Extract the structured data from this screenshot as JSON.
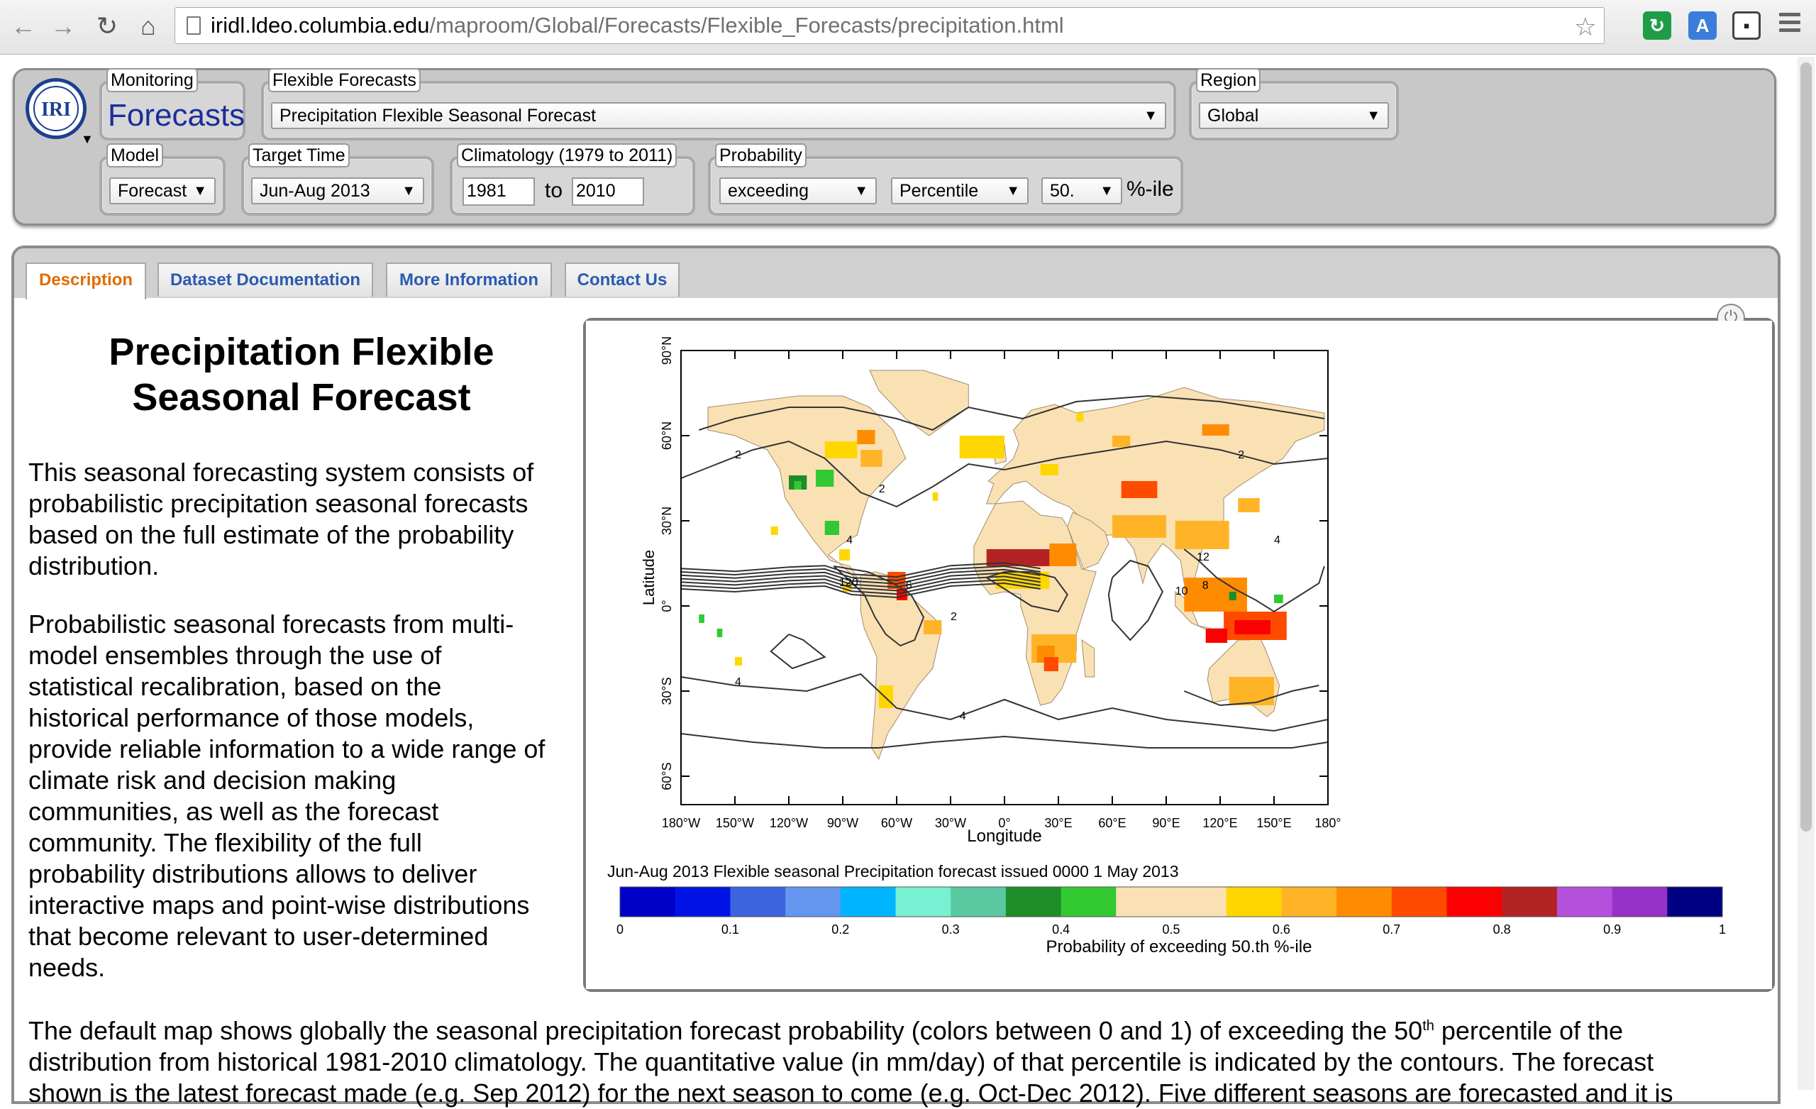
{
  "browser": {
    "url_host": "iridl.ldeo.columbia.edu",
    "url_path": "/maproom/Global/Forecasts/Flexible_Forecasts/precipitation.html"
  },
  "controls": {
    "monitoring": {
      "legend": "Monitoring",
      "value": "Forecasts"
    },
    "flexible": {
      "legend": "Flexible Forecasts",
      "value": "Precipitation Flexible Seasonal Forecast"
    },
    "region": {
      "legend": "Region",
      "value": "Global"
    },
    "model": {
      "legend": "Model",
      "value": "Forecast"
    },
    "target": {
      "legend": "Target Time",
      "value": "Jun-Aug 2013"
    },
    "climatology": {
      "legend": "Climatology (1979 to 2011)",
      "from": "1981",
      "to_label": "to",
      "to": "2010"
    },
    "probability": {
      "legend": "Probability",
      "mode": "exceeding",
      "type": "Percentile",
      "value": "50.",
      "unit": "%-ile"
    }
  },
  "tabs": [
    "Description",
    "Dataset Documentation",
    "More Information",
    "Contact Us"
  ],
  "title_lines": [
    "Precipitation Flexible",
    "Seasonal Forecast"
  ],
  "para1": [
    "This seasonal forecasting system consists of",
    "probabilistic precipitation seasonal forecasts",
    "based on the full estimate of the probability",
    "distribution."
  ],
  "para2": [
    "Probabilistic seasonal forecasts from multi-",
    "model ensembles through the use of",
    "statistical recalibration, based on the",
    "historical performance of those models,",
    "provide reliable information to a wide range of",
    "climate risk and decision making",
    "communities, as well as the forecast",
    "community. The flexibility of the full",
    "probability distributions allows to deliver",
    "interactive maps and point-wise distributions",
    "that become relevant to user-determined",
    "needs."
  ],
  "para3": {
    "line1_a": "The default map shows globally the seasonal precipitation forecast probability (colors between 0 and 1) of exceeding the 50",
    "line1_sup": "th",
    "line1_b": " percentile of the",
    "line2": "distribution from historical 1981-2010 climatology. The quantitative value (in mm/day) of that percentile is indicated by the contours. The forecast",
    "line3": "shown is the latest forecast made (e.g. Sep 2012) for the next season to come (e.g. Oct-Dec 2012). Five different seasons are forecasted and it is"
  },
  "map": {
    "y_label": "Latitude",
    "x_label": "Longitude",
    "lat_ticks": [
      "90°N",
      "60°N",
      "30°N",
      "0°",
      "30°S",
      "60°S"
    ],
    "lon_ticks": [
      "180°W",
      "150°W",
      "120°W",
      "90°W",
      "60°W",
      "30°W",
      "0°",
      "30°E",
      "60°E",
      "90°E",
      "120°E",
      "150°E",
      "180°"
    ],
    "caption": "Jun-Aug 2013 Flexible seasonal Precipitation forecast issued 0000 1 May 2013",
    "colorbar_label": "Probability of exceeding 50.th %-ile",
    "colorbar_ticks": [
      "0",
      "0.1",
      "0.2",
      "0.3",
      "0.4",
      "0.5",
      "0.6",
      "0.7",
      "0.8",
      "0.9",
      "1"
    ],
    "colorbar_colors": [
      "#0000c8",
      "#0014e6",
      "#3c64dc",
      "#6496f0",
      "#00b4ff",
      "#78f0d2",
      "#5ac8a0",
      "#1e8c28",
      "#32c832",
      "#fae1b4",
      "#fae1b4",
      "#ffd700",
      "#ffb428",
      "#ff8c00",
      "#ff4b00",
      "#fa0000",
      "#b42323",
      "#b450dc",
      "#9632c8",
      "#000082"
    ],
    "contour_labels": [
      "2",
      "2",
      "2",
      "4",
      "4",
      "4",
      "6",
      "8",
      "10",
      "12",
      "120",
      "2",
      "4"
    ]
  }
}
